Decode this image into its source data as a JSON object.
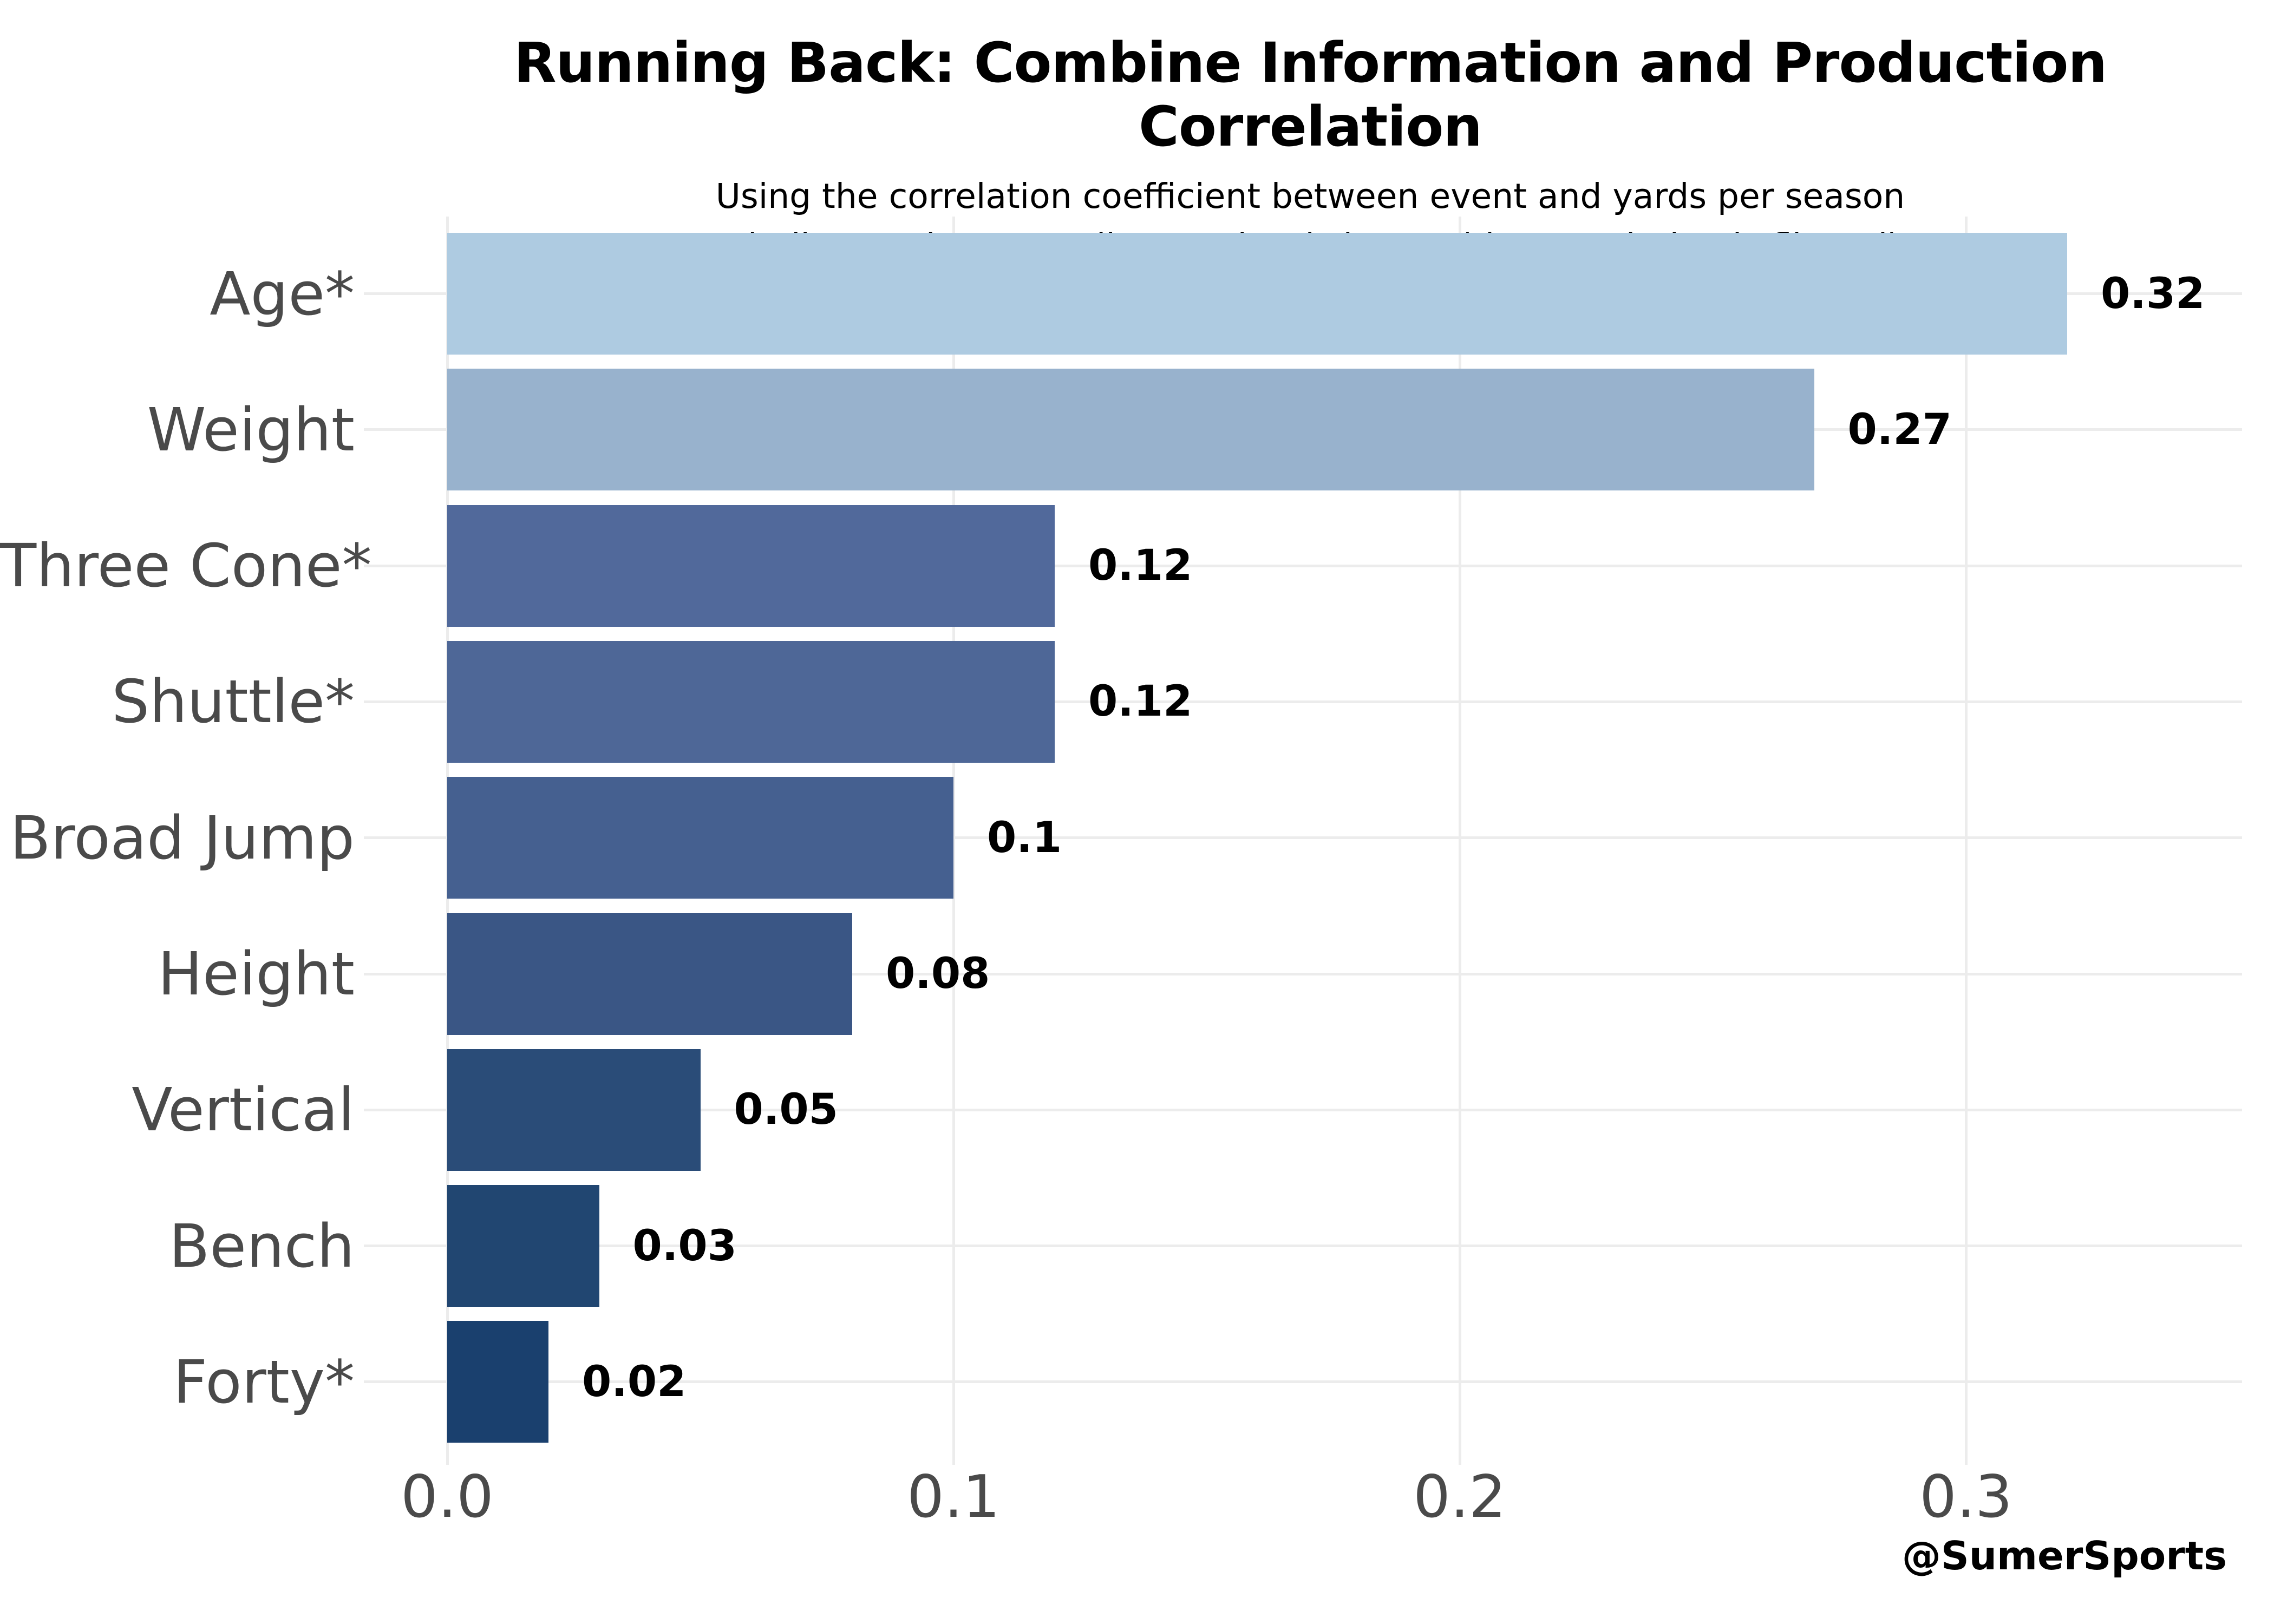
{
  "header": {
    "title": "Running Back: Combine Information and Production Correlation",
    "subtitle_line1": "Using the correlation coefficient between event and yards per season",
    "subtitle_line2": "* indicates that a smaller number is better (the correlation is flipped)"
  },
  "footer": {
    "credit": "@SumerSports"
  },
  "chart_data": {
    "type": "bar",
    "orientation": "horizontal",
    "title": "Running Back: Combine Information and Production Correlation",
    "subtitle": "Using the correlation coefficient between event and yards per season * indicates that a smaller number is better (the correlation is flipped)",
    "xlabel": "",
    "ylabel": "",
    "categories": [
      "Age*",
      "Weight",
      "Three Cone*",
      "Shuttle*",
      "Broad Jump",
      "Height",
      "Vertical",
      "Bench",
      "Forty*"
    ],
    "values": [
      0.32,
      0.27,
      0.12,
      0.12,
      0.1,
      0.08,
      0.05,
      0.03,
      0.02
    ],
    "value_labels": [
      "0.32",
      "0.27",
      "0.12",
      "0.12",
      "0.1",
      "0.08",
      "0.05",
      "0.03",
      "0.02"
    ],
    "bar_colors": [
      "#AECBE1",
      "#98B2CD",
      "#51699B",
      "#4E6797",
      "#456090",
      "#3A5685",
      "#2A4C78",
      "#214671",
      "#1A406E"
    ],
    "x_ticks": [
      0.0,
      0.1,
      0.2,
      0.3
    ],
    "x_tick_labels": [
      "0.0",
      "0.1",
      "0.2",
      "0.3"
    ],
    "xlim": [
      0,
      0.3545
    ],
    "grid": true,
    "legend": false,
    "colors": {
      "background": "#FFFFFF",
      "grid": "#ECECEC",
      "axis_text": "#4A4A4A",
      "value_text": "#000000",
      "title_text": "#000000"
    }
  }
}
